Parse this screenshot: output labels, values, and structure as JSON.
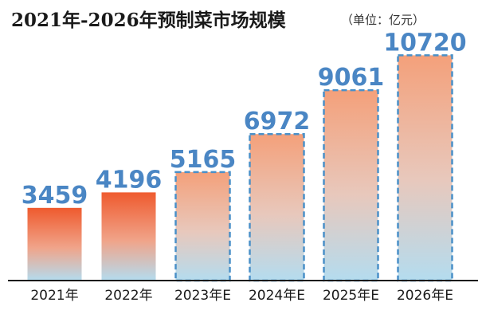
{
  "title": "2021年-2026年预制菜市场规模",
  "unit": "（单位：亿元）",
  "colors": {
    "actual_top": "#ef5a2e",
    "forecast_top": "#f4a07a",
    "bottom": "#b4dcef",
    "label": "#4a86c4",
    "forecast_border": "#4a90c8"
  },
  "chart_data": {
    "type": "bar",
    "categories": [
      "2021年",
      "2022年",
      "2023年E",
      "2024年E",
      "2025年E",
      "2026年E"
    ],
    "values": [
      3459,
      4196,
      5165,
      6972,
      9061,
      10720
    ],
    "forecast": [
      false,
      false,
      true,
      true,
      true,
      true
    ],
    "ylim": [
      0,
      11000
    ],
    "grid": false
  }
}
